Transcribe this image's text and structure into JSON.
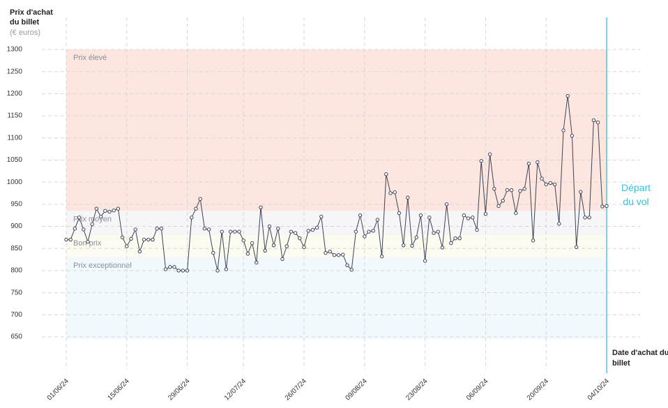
{
  "chart_data": {
    "type": "line",
    "y_title": "Prix d'achat du billet",
    "y_unit": "(€ euros)",
    "x_title": "Date d'achat du billet",
    "annotation": "Départ du vol",
    "color": "#3a4255",
    "annotation_color": "#33c3dd",
    "ylim": [
      600,
      1300
    ],
    "yticks": [
      650,
      700,
      750,
      800,
      850,
      900,
      950,
      1000,
      1050,
      1100,
      1150,
      1200,
      1250,
      1300
    ],
    "grid": true,
    "bands": [
      {
        "label": "Prix élevé",
        "from": 935,
        "to": 1300,
        "color": "#fde6df"
      },
      {
        "label": "Prix moyen",
        "from": 880,
        "to": 935,
        "color": "#f6f6f8"
      },
      {
        "label": "Bon prix",
        "from": 830,
        "to": 880,
        "color": "#fbfbef"
      },
      {
        "label": "Prix exceptionnel",
        "from": 645,
        "to": 830,
        "color": "#f1f9fd"
      }
    ],
    "categories": [
      "01/06/24",
      null,
      null,
      null,
      null,
      null,
      null,
      null,
      null,
      null,
      null,
      null,
      null,
      null,
      "15/06/24",
      null,
      null,
      null,
      null,
      null,
      null,
      null,
      null,
      null,
      null,
      null,
      null,
      null,
      "29/06/24",
      null,
      null,
      null,
      null,
      null,
      null,
      null,
      null,
      null,
      null,
      null,
      null,
      "12/07/24",
      null,
      null,
      null,
      null,
      null,
      null,
      null,
      null,
      null,
      null,
      null,
      null,
      null,
      "26/07/24",
      null,
      null,
      null,
      null,
      null,
      null,
      null,
      null,
      null,
      null,
      null,
      null,
      null,
      "09/08/24",
      null,
      null,
      null,
      null,
      null,
      null,
      null,
      null,
      null,
      null,
      null,
      null,
      null,
      "23/08/24",
      null,
      null,
      null,
      null,
      null,
      null,
      null,
      null,
      null,
      null,
      null,
      null,
      null,
      "06/09/24",
      null,
      null,
      null,
      null,
      null,
      null,
      null,
      null,
      null,
      null,
      null,
      null,
      null,
      "20/09/24",
      null,
      null,
      null,
      null,
      null,
      null,
      null,
      null,
      null,
      null,
      null,
      null,
      null,
      "04/10/24"
    ],
    "values": [
      870,
      870,
      895,
      920,
      893,
      865,
      905,
      940,
      922,
      935,
      933,
      936,
      940,
      875,
      855,
      872,
      893,
      843,
      870,
      870,
      870,
      895,
      895,
      803,
      808,
      808,
      800,
      800,
      800,
      920,
      940,
      962,
      895,
      893,
      840,
      800,
      888,
      803,
      888,
      888,
      888,
      868,
      838,
      862,
      818,
      943,
      845,
      900,
      857,
      895,
      826,
      855,
      888,
      885,
      873,
      853,
      890,
      892,
      897,
      922,
      840,
      843,
      835,
      835,
      836,
      812,
      802,
      888,
      925,
      877,
      888,
      890,
      915,
      832,
      1018,
      975,
      977,
      930,
      857,
      965,
      856,
      875,
      925,
      822,
      920,
      885,
      888,
      852,
      950,
      862,
      873,
      873,
      925,
      918,
      920,
      892,
      1048,
      928,
      1063,
      985,
      946,
      958,
      982,
      982,
      930,
      980,
      985,
      1042,
      868,
      1045,
      1008,
      995,
      998,
      995,
      906,
      1117,
      1195,
      1105,
      853,
      978,
      920,
      920,
      1140,
      1135,
      945,
      946
    ]
  }
}
